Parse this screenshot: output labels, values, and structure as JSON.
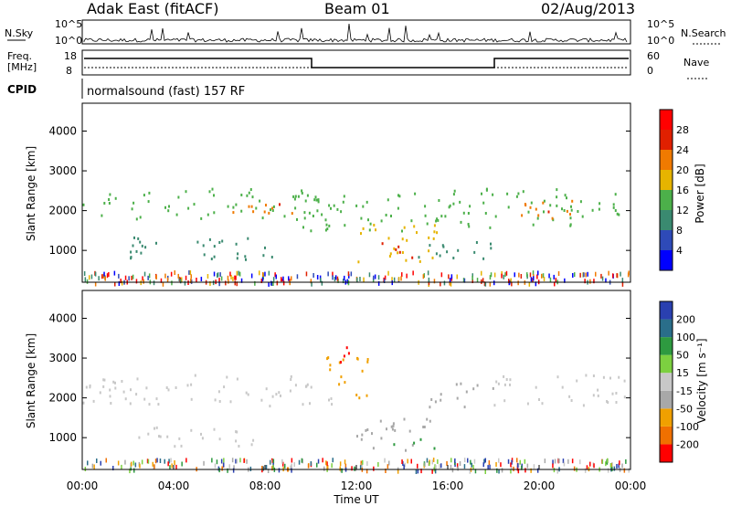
{
  "header": {
    "title": "Adak East (fitACF)",
    "beam": "Beam 01",
    "date": "02/Aug/2013"
  },
  "top_panels": {
    "nsky_label": "N.Sky",
    "nsky_ticks": [
      "10^5",
      "10^0"
    ],
    "nsearch_label": "N.Search",
    "nsearch_ticks": [
      "10^5",
      "10^0"
    ],
    "freq_label_1": "Freq.",
    "freq_label_2": "[MHz]",
    "freq_ticks": [
      "18",
      "8"
    ],
    "nave_label": "Nave",
    "nave_ticks": [
      "60",
      "0"
    ],
    "cpid_label": "CPID",
    "cpid_text": "normalsound (fast) 157 RF"
  },
  "chart_data": [
    {
      "type": "heatmap",
      "ylabel": "Slant Range [km]",
      "yticks": [
        "1000",
        "2000",
        "3000",
        "4000"
      ],
      "ylim": [
        200,
        4700
      ],
      "xlim": [
        0,
        24
      ],
      "colorbar_label": "Power [dB]",
      "colorbar_ticks": [
        "4",
        "8",
        "12",
        "16",
        "20",
        "24",
        "28"
      ],
      "colors": [
        "#0000ff",
        "#2e4ab8",
        "#3a8a70",
        "#4cb04a",
        "#e6b400",
        "#f07a00",
        "#e02000",
        "#ff0000"
      ],
      "regions": [
        {
          "x0": 0.0,
          "x1": 10.5,
          "y0": 1800,
          "y1": 2600,
          "level": 3
        },
        {
          "x0": 6.5,
          "x1": 9.5,
          "y0": 1900,
          "y1": 2300,
          "level": 5
        },
        {
          "x0": 8.0,
          "x1": 9.0,
          "y0": 2000,
          "y1": 2200,
          "level": 6
        },
        {
          "x0": 2.0,
          "x1": 9.0,
          "y0": 800,
          "y1": 1400,
          "level": 2
        },
        {
          "x0": 9.5,
          "x1": 16.0,
          "y0": 1500,
          "y1": 2500,
          "level": 3
        },
        {
          "x0": 12.0,
          "x1": 15.5,
          "y0": 700,
          "y1": 1700,
          "level": 4
        },
        {
          "x0": 13.0,
          "x1": 14.5,
          "y0": 800,
          "y1": 1300,
          "level": 6
        },
        {
          "x0": 16.0,
          "x1": 24.0,
          "y0": 1600,
          "y1": 2600,
          "level": 3
        },
        {
          "x0": 18.5,
          "x1": 21.5,
          "y0": 1800,
          "y1": 2300,
          "level": 5
        },
        {
          "x0": 19.5,
          "x1": 20.5,
          "y0": 1900,
          "y1": 2100,
          "level": 6
        },
        {
          "x0": 14.0,
          "x1": 18.0,
          "y0": 800,
          "y1": 1300,
          "level": 2
        },
        {
          "x0": 8.5,
          "x1": 9.8,
          "y0": 200,
          "y1": 400,
          "level": 7
        }
      ]
    },
    {
      "type": "heatmap",
      "ylabel": "Slant Range [km]",
      "yticks": [
        "1000",
        "2000",
        "3000",
        "4000"
      ],
      "ylim": [
        200,
        4700
      ],
      "xlim": [
        0,
        24
      ],
      "xticks": [
        "00:00",
        "04:00",
        "08:00",
        "12:00",
        "16:00",
        "20:00",
        "00:00"
      ],
      "xlabel": "Time UT",
      "colorbar_label": "Velocity [m s⁻¹]",
      "colorbar_ticks": [
        "200",
        "100",
        "50",
        "15",
        "-15",
        "-50",
        "-100",
        "-200"
      ],
      "colors": [
        "#2a40b0",
        "#2a6e8a",
        "#2e9a40",
        "#7cd040",
        "#c8c8c8",
        "#a8a8a8",
        "#f0a000",
        "#f07000",
        "#ff0000"
      ],
      "regions": [
        {
          "x0": 0.0,
          "x1": 11.0,
          "y0": 1800,
          "y1": 2600,
          "level": 4
        },
        {
          "x0": 10.5,
          "x1": 12.5,
          "y0": 2000,
          "y1": 3200,
          "level": 2
        },
        {
          "x0": 11.0,
          "x1": 12.0,
          "y0": 2800,
          "y1": 3300,
          "level": 0
        },
        {
          "x0": 12.0,
          "x1": 16.0,
          "y0": 700,
          "y1": 1500,
          "level": 3
        },
        {
          "x0": 13.5,
          "x1": 15.5,
          "y0": 700,
          "y1": 1000,
          "level": 6
        },
        {
          "x0": 15.0,
          "x1": 18.0,
          "y0": 1800,
          "y1": 2400,
          "level": 3
        },
        {
          "x0": 18.0,
          "x1": 24.0,
          "y0": 1800,
          "y1": 2600,
          "level": 4
        },
        {
          "x0": 2.0,
          "x1": 8.0,
          "y0": 800,
          "y1": 1300,
          "level": 4
        }
      ]
    }
  ]
}
